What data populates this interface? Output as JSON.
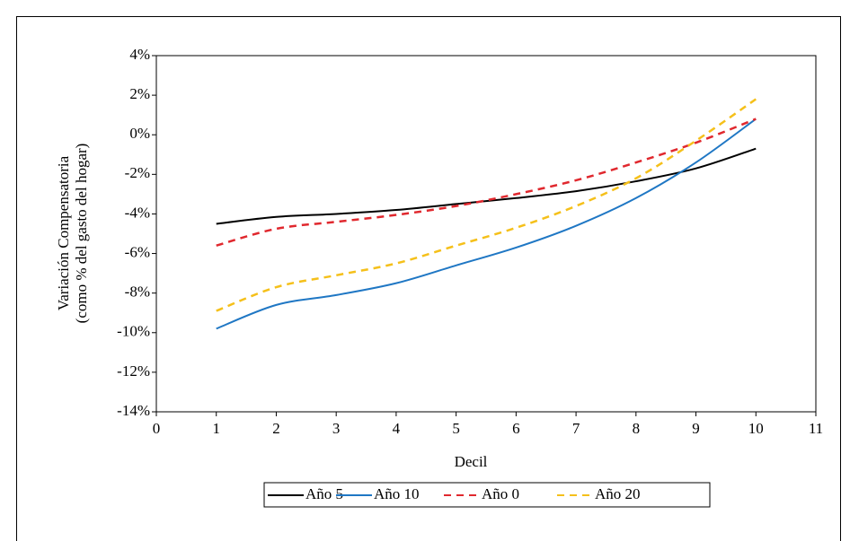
{
  "chart_data": {
    "type": "line",
    "xlabel": "Decil",
    "ylabel": [
      "Variación Compensatoria",
      "(como % del gasto del hogar)"
    ],
    "x": [
      1,
      2,
      3,
      4,
      5,
      6,
      7,
      8,
      9,
      10
    ],
    "xlim": [
      0,
      11
    ],
    "xticks": [
      0,
      1,
      2,
      3,
      4,
      5,
      6,
      7,
      8,
      9,
      10,
      11
    ],
    "ylim": [
      -14,
      4
    ],
    "yticks": [
      {
        "value": -14,
        "label": "-14%"
      },
      {
        "value": -12,
        "label": "-12%"
      },
      {
        "value": -10,
        "label": "-10%"
      },
      {
        "value": -8,
        "label": "-8%"
      },
      {
        "value": -6,
        "label": "-6%"
      },
      {
        "value": -4,
        "label": "-4%"
      },
      {
        "value": -2,
        "label": "-2%"
      },
      {
        "value": 0,
        "label": "0%"
      },
      {
        "value": 2,
        "label": "2%"
      },
      {
        "value": 4,
        "label": "4%"
      }
    ],
    "series": [
      {
        "name": "Año 5",
        "color": "#000000",
        "dashed": false,
        "values": [
          -4.5,
          -4.15,
          -4.0,
          -3.8,
          -3.5,
          -3.2,
          -2.85,
          -2.35,
          -1.7,
          -0.7
        ]
      },
      {
        "name": "Año 10",
        "color": "#1f77c4",
        "dashed": false,
        "values": [
          -9.8,
          -8.6,
          -8.1,
          -7.5,
          -6.6,
          -5.7,
          -4.6,
          -3.2,
          -1.4,
          0.8
        ]
      },
      {
        "name": "Año 0",
        "color": "#e0282e",
        "dashed": true,
        "values": [
          -5.6,
          -4.75,
          -4.4,
          -4.05,
          -3.6,
          -3.0,
          -2.3,
          -1.4,
          -0.4,
          0.8
        ]
      },
      {
        "name": "Año 20",
        "color": "#f5c01a",
        "dashed": true,
        "values": [
          -8.9,
          -7.7,
          -7.1,
          -6.5,
          -5.6,
          -4.7,
          -3.6,
          -2.2,
          -0.3,
          1.8
        ]
      }
    ]
  }
}
